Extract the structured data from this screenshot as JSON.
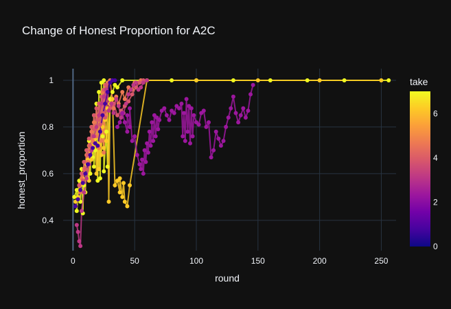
{
  "chart_data": {
    "type": "scatter",
    "title": "Change of Honest Proportion for A2C",
    "xlabel": "round",
    "ylabel": "honest_proportion",
    "xlim": [
      -8,
      262
    ],
    "ylim": [
      0.27,
      1.05
    ],
    "xticks": [
      0,
      50,
      100,
      150,
      200,
      250
    ],
    "yticks": [
      0.4,
      0.6,
      0.8,
      1
    ],
    "ytick_labels": [
      "0.4",
      "0.6",
      "0.8",
      "1"
    ],
    "grid": true,
    "colorbar": {
      "title": "take",
      "range": [
        0,
        7
      ],
      "ticks": [
        0,
        2,
        4,
        6
      ],
      "colorscale": [
        "#0d0887",
        "#46039f",
        "#7201a8",
        "#9c179e",
        "#bd3786",
        "#d8576b",
        "#ed7953",
        "#fb9f3a",
        "#fdca26",
        "#f0f921"
      ]
    },
    "series": [
      {
        "take": 7,
        "points": [
          [
            1,
            0.5
          ],
          [
            3,
            0.53
          ],
          [
            5,
            0.57
          ],
          [
            7,
            0.62
          ],
          [
            9,
            0.65
          ],
          [
            11,
            0.7
          ],
          [
            13,
            0.74
          ],
          [
            15,
            0.8
          ],
          [
            17,
            0.85
          ],
          [
            19,
            0.9
          ],
          [
            21,
            0.95
          ],
          [
            23,
            0.99
          ],
          [
            25,
            1
          ],
          [
            40,
            1
          ],
          [
            60,
            1
          ],
          [
            80,
            1
          ],
          [
            100,
            1
          ],
          [
            130,
            1
          ],
          [
            160,
            1
          ],
          [
            190,
            1
          ],
          [
            220,
            1
          ],
          [
            256,
            1
          ],
          [
            3,
            0.44
          ],
          [
            6,
            0.48
          ],
          [
            9,
            0.55
          ],
          [
            12,
            0.58
          ],
          [
            14,
            0.6
          ],
          [
            17,
            0.63
          ],
          [
            20,
            0.57
          ],
          [
            22,
            0.58
          ],
          [
            25,
            0.61
          ],
          [
            28,
            0.63
          ],
          [
            30,
            0.92
          ],
          [
            32,
            0.95
          ],
          [
            34,
            0.98
          ],
          [
            36,
            0.97
          ],
          [
            8,
            0.43
          ],
          [
            10,
            0.52
          ],
          [
            16,
            0.67
          ],
          [
            18,
            0.7
          ],
          [
            24,
            0.76
          ],
          [
            27,
            0.78
          ]
        ]
      },
      {
        "take": 6,
        "points": [
          [
            4,
            0.5
          ],
          [
            6,
            0.55
          ],
          [
            8,
            0.58
          ],
          [
            10,
            0.62
          ],
          [
            12,
            0.66
          ],
          [
            14,
            0.7
          ],
          [
            16,
            0.72
          ],
          [
            18,
            0.75
          ],
          [
            20,
            0.73
          ],
          [
            22,
            0.78
          ],
          [
            24,
            0.8
          ],
          [
            26,
            0.83
          ],
          [
            28,
            0.88
          ],
          [
            30,
            0.9
          ],
          [
            32,
            0.92
          ],
          [
            34,
            0.55
          ],
          [
            36,
            0.57
          ],
          [
            38,
            0.52
          ],
          [
            40,
            0.5
          ],
          [
            42,
            0.48
          ],
          [
            44,
            0.46
          ],
          [
            46,
            0.55
          ],
          [
            29,
            0.48
          ],
          [
            19,
            0.6
          ],
          [
            21,
            0.62
          ],
          [
            23,
            0.68
          ],
          [
            25,
            0.71
          ],
          [
            27,
            0.74
          ],
          [
            60,
            1
          ],
          [
            100,
            1
          ],
          [
            150,
            1
          ],
          [
            200,
            1
          ],
          [
            250,
            1
          ],
          [
            2,
            0.48
          ],
          [
            7,
            0.6
          ],
          [
            11,
            0.64
          ],
          [
            13,
            0.57
          ],
          [
            15,
            0.66
          ],
          [
            38,
            0.58
          ],
          [
            41,
            0.56
          ]
        ]
      },
      {
        "take": 5,
        "points": [
          [
            6,
            0.52
          ],
          [
            8,
            0.56
          ],
          [
            10,
            0.6
          ],
          [
            12,
            0.65
          ],
          [
            14,
            0.7
          ],
          [
            16,
            0.74
          ],
          [
            18,
            0.8
          ],
          [
            20,
            0.85
          ],
          [
            22,
            0.9
          ],
          [
            24,
            0.95
          ],
          [
            26,
            0.98
          ],
          [
            28,
            0.99
          ],
          [
            30,
            1
          ],
          [
            35,
            0.93
          ],
          [
            40,
            0.95
          ],
          [
            45,
            0.97
          ],
          [
            50,
            0.99
          ],
          [
            55,
            1
          ],
          [
            9,
            0.62
          ],
          [
            11,
            0.68
          ],
          [
            13,
            0.72
          ],
          [
            15,
            0.78
          ],
          [
            17,
            0.82
          ],
          [
            19,
            0.76
          ],
          [
            21,
            0.71
          ],
          [
            23,
            0.74
          ],
          [
            25,
            0.69
          ],
          [
            27,
            0.85
          ],
          [
            33,
            0.88
          ],
          [
            37,
            0.9
          ],
          [
            42,
            0.92
          ],
          [
            48,
            0.96
          ],
          [
            7,
            0.58
          ],
          [
            5,
            0.55
          ]
        ]
      },
      {
        "take": 4,
        "points": [
          [
            5,
            0.55
          ],
          [
            7,
            0.6
          ],
          [
            9,
            0.65
          ],
          [
            11,
            0.7
          ],
          [
            13,
            0.75
          ],
          [
            15,
            0.8
          ],
          [
            17,
            0.85
          ],
          [
            19,
            0.88
          ],
          [
            21,
            0.9
          ],
          [
            23,
            0.93
          ],
          [
            25,
            0.96
          ],
          [
            27,
            0.98
          ],
          [
            30,
            0.88
          ],
          [
            33,
            0.9
          ],
          [
            36,
            0.85
          ],
          [
            39,
            0.87
          ],
          [
            42,
            0.89
          ],
          [
            45,
            0.91
          ],
          [
            48,
            0.94
          ],
          [
            51,
            0.97
          ],
          [
            54,
            0.99
          ],
          [
            57,
            1
          ],
          [
            10,
            0.62
          ],
          [
            12,
            0.68
          ],
          [
            14,
            0.72
          ],
          [
            16,
            0.76
          ],
          [
            18,
            0.79
          ],
          [
            20,
            0.83
          ],
          [
            22,
            0.81
          ],
          [
            24,
            0.86
          ],
          [
            26,
            0.84
          ],
          [
            8,
            0.57
          ]
        ]
      },
      {
        "take": 3,
        "points": [
          [
            3,
            0.38
          ],
          [
            4,
            0.35
          ],
          [
            5,
            0.31
          ],
          [
            6,
            0.29
          ],
          [
            7,
            0.44
          ],
          [
            9,
            0.52
          ],
          [
            11,
            0.58
          ],
          [
            13,
            0.64
          ],
          [
            15,
            0.7
          ],
          [
            17,
            0.76
          ],
          [
            19,
            0.8
          ],
          [
            21,
            0.85
          ],
          [
            23,
            0.9
          ],
          [
            25,
            0.93
          ],
          [
            27,
            0.96
          ],
          [
            29,
            0.87
          ],
          [
            31,
            0.9
          ],
          [
            33,
            0.86
          ],
          [
            35,
            0.92
          ],
          [
            37,
            0.89
          ],
          [
            39,
            0.84
          ],
          [
            41,
            0.86
          ],
          [
            43,
            0.9
          ],
          [
            45,
            0.94
          ],
          [
            47,
            0.96
          ],
          [
            49,
            0.98
          ],
          [
            51,
            0.99
          ],
          [
            53,
            0.96
          ],
          [
            55,
            0.97
          ],
          [
            57,
            0.99
          ],
          [
            60,
            1
          ]
        ]
      },
      {
        "take": 2,
        "points": [
          [
            40,
            0.86
          ],
          [
            42,
            0.82
          ],
          [
            44,
            0.78
          ],
          [
            46,
            0.8
          ],
          [
            48,
            0.74
          ],
          [
            50,
            0.76
          ],
          [
            52,
            0.68
          ],
          [
            54,
            0.64
          ],
          [
            56,
            0.66
          ],
          [
            58,
            0.7
          ],
          [
            60,
            0.73
          ],
          [
            62,
            0.78
          ],
          [
            64,
            0.82
          ],
          [
            66,
            0.85
          ],
          [
            68,
            0.84
          ],
          [
            70,
            0.83
          ],
          [
            72,
            0.87
          ],
          [
            74,
            0.88
          ],
          [
            76,
            0.85
          ],
          [
            78,
            0.83
          ],
          [
            80,
            0.87
          ],
          [
            82,
            0.86
          ],
          [
            84,
            0.89
          ],
          [
            86,
            0.88
          ],
          [
            88,
            0.9
          ],
          [
            90,
            0.86
          ],
          [
            92,
            0.92
          ],
          [
            94,
            0.89
          ],
          [
            96,
            0.88
          ],
          [
            98,
            0.85
          ],
          [
            100,
            0.82
          ],
          [
            102,
            0.81
          ],
          [
            104,
            0.86
          ],
          [
            106,
            0.87
          ],
          [
            108,
            0.8
          ],
          [
            110,
            0.82
          ],
          [
            112,
            0.67
          ],
          [
            114,
            0.7
          ],
          [
            116,
            0.78
          ],
          [
            118,
            0.75
          ],
          [
            120,
            0.72
          ],
          [
            122,
            0.74
          ],
          [
            124,
            0.8
          ],
          [
            126,
            0.84
          ],
          [
            128,
            0.88
          ],
          [
            130,
            0.93
          ],
          [
            132,
            0.86
          ],
          [
            134,
            0.82
          ],
          [
            136,
            0.85
          ],
          [
            138,
            0.88
          ],
          [
            140,
            0.84
          ],
          [
            142,
            0.87
          ],
          [
            144,
            0.94
          ],
          [
            146,
            0.98
          ],
          [
            89,
            0.76
          ],
          [
            91,
            0.74
          ],
          [
            93,
            0.78
          ],
          [
            95,
            0.73
          ],
          [
            97,
            0.76
          ],
          [
            55,
            0.62
          ],
          [
            57,
            0.6
          ],
          [
            59,
            0.65
          ],
          [
            61,
            0.69
          ],
          [
            63,
            0.72
          ],
          [
            65,
            0.74
          ],
          [
            67,
            0.76
          ],
          [
            69,
            0.79
          ],
          [
            44,
            0.85
          ],
          [
            46,
            0.88
          ],
          [
            38,
            0.82
          ],
          [
            36,
            0.8
          ]
        ]
      },
      {
        "take": 1,
        "points": [
          [
            20,
            0.72
          ],
          [
            22,
            0.78
          ],
          [
            24,
            0.85
          ],
          [
            26,
            0.9
          ],
          [
            28,
            0.95
          ],
          [
            30,
            0.99
          ],
          [
            32,
            1
          ],
          [
            34,
            1
          ],
          [
            2,
            0.46
          ],
          [
            4,
            0.49
          ],
          [
            6,
            0.53
          ],
          [
            8,
            0.56
          ],
          [
            10,
            0.6
          ],
          [
            12,
            0.64
          ],
          [
            14,
            0.68
          ],
          [
            16,
            0.71
          ],
          [
            18,
            0.73
          ]
        ]
      }
    ]
  }
}
